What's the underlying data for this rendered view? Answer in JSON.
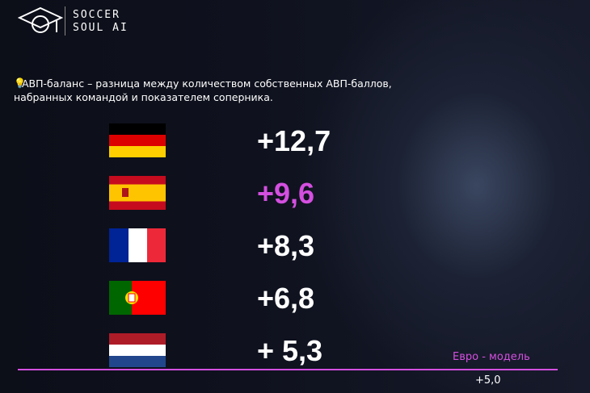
{
  "logo": {
    "line1": "SOCCER",
    "line2": "SOUL AI"
  },
  "note": {
    "line1": "АВП-баланс – разница между количеством собственных АВП-баллов,",
    "line2": "набранных командой и показателем соперника."
  },
  "rows": [
    {
      "value": "+12,7"
    },
    {
      "value": "+9,6"
    },
    {
      "value": "+8,3"
    },
    {
      "value": "+6,8"
    },
    {
      "value": "+ 5,3"
    }
  ],
  "footer": {
    "label": "Евро - модель",
    "value": "+5,0"
  }
}
